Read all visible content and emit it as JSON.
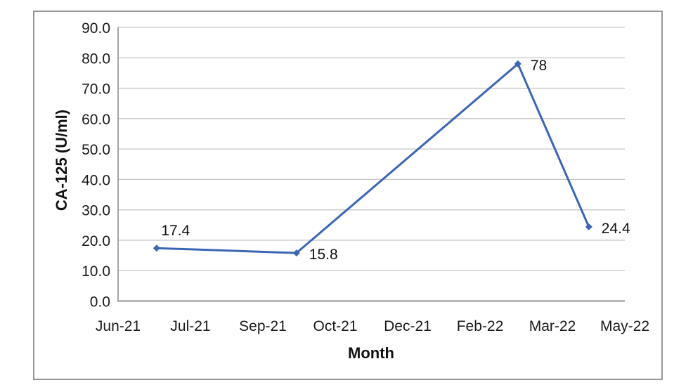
{
  "figure": {
    "background": "#ffffff",
    "border_color": "#979797"
  },
  "colors": {
    "series_blue": "#3B66B5",
    "gridline": "#C6C6C6",
    "axis_line": "#909090",
    "text": "#1a1a1a"
  },
  "chart_data": {
    "type": "line",
    "title": "",
    "xlabel": "Month",
    "ylabel": "CA-125 (U/ml)",
    "ylim": [
      0,
      90
    ],
    "ytick_values": [
      0,
      10,
      20,
      30,
      40,
      50,
      60,
      70,
      80,
      90
    ],
    "ytick_labels": [
      "0.0",
      "10.0",
      "20.0",
      "30.0",
      "40.0",
      "50.0",
      "60.0",
      "70.0",
      "80.0",
      "90.0"
    ],
    "xtick_labels": [
      "Jun-21",
      "Jul-21",
      "Sep-21",
      "Oct-21",
      "Dec-21",
      "Feb-22",
      "Mar-22",
      "May-22"
    ],
    "grid": true,
    "legend": "none",
    "series": [
      {
        "name": "CA-125",
        "color": "#3B66B5",
        "marker": "diamond",
        "points": [
          {
            "x_frac": 0.076,
            "value": 17.4,
            "label": "17.4",
            "label_pos": "above"
          },
          {
            "x_frac": 0.352,
            "value": 15.8,
            "label": "15.8",
            "label_pos": "right"
          },
          {
            "x_frac": 0.789,
            "value": 78,
            "label": "78",
            "label_pos": "right"
          },
          {
            "x_frac": 0.929,
            "value": 24.4,
            "label": "24.4",
            "label_pos": "right"
          }
        ]
      }
    ]
  }
}
